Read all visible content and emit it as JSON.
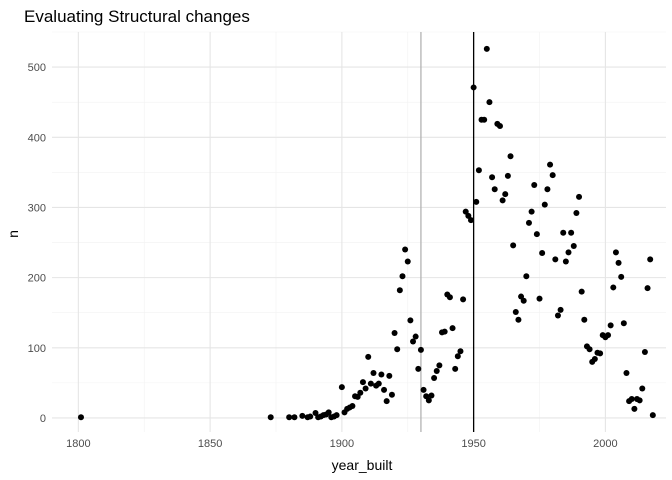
{
  "chart_data": {
    "type": "scatter",
    "title": "Evaluating Structural changes",
    "xlabel": "year_built",
    "ylabel": "n",
    "xlim": [
      1790,
      2023
    ],
    "ylim": [
      -20,
      550
    ],
    "x_ticks": [
      1800,
      1850,
      1900,
      1950,
      2000
    ],
    "y_ticks": [
      0,
      100,
      200,
      300,
      400,
      500
    ],
    "grid": true,
    "colors": {
      "points": "#000000",
      "grid_major": "#e5e5e5",
      "grid_minor": "#f2f2f2",
      "vline_gray": "#b3b3b3",
      "vline_black": "#000000"
    },
    "vlines": [
      {
        "x": 1930,
        "color": "#b3b3b3"
      },
      {
        "x": 1950,
        "color": "#000000"
      }
    ],
    "points": [
      [
        1801,
        1
      ],
      [
        1873,
        1
      ],
      [
        1880,
        1
      ],
      [
        1882,
        1
      ],
      [
        1885,
        3
      ],
      [
        1887,
        1
      ],
      [
        1888,
        2
      ],
      [
        1890,
        7
      ],
      [
        1891,
        1
      ],
      [
        1892,
        2
      ],
      [
        1893,
        4
      ],
      [
        1894,
        5
      ],
      [
        1895,
        8
      ],
      [
        1896,
        1
      ],
      [
        1897,
        2
      ],
      [
        1898,
        4
      ],
      [
        1900,
        44
      ],
      [
        1901,
        8
      ],
      [
        1902,
        13
      ],
      [
        1903,
        15
      ],
      [
        1904,
        17
      ],
      [
        1905,
        31
      ],
      [
        1906,
        30
      ],
      [
        1907,
        36
      ],
      [
        1908,
        51
      ],
      [
        1909,
        42
      ],
      [
        1910,
        87
      ],
      [
        1911,
        49
      ],
      [
        1912,
        64
      ],
      [
        1913,
        46
      ],
      [
        1914,
        49
      ],
      [
        1915,
        62
      ],
      [
        1916,
        40
      ],
      [
        1917,
        24
      ],
      [
        1918,
        60
      ],
      [
        1919,
        33
      ],
      [
        1920,
        121
      ],
      [
        1921,
        98
      ],
      [
        1922,
        182
      ],
      [
        1923,
        202
      ],
      [
        1924,
        240
      ],
      [
        1925,
        223
      ],
      [
        1926,
        139
      ],
      [
        1927,
        109
      ],
      [
        1928,
        116
      ],
      [
        1929,
        70
      ],
      [
        1930,
        97
      ],
      [
        1931,
        40
      ],
      [
        1932,
        31
      ],
      [
        1933,
        25
      ],
      [
        1934,
        32
      ],
      [
        1935,
        57
      ],
      [
        1936,
        67
      ],
      [
        1937,
        75
      ],
      [
        1938,
        122
      ],
      [
        1939,
        123
      ],
      [
        1940,
        176
      ],
      [
        1941,
        172
      ],
      [
        1942,
        128
      ],
      [
        1943,
        70
      ],
      [
        1944,
        88
      ],
      [
        1945,
        95
      ],
      [
        1946,
        169
      ],
      [
        1947,
        294
      ],
      [
        1948,
        288
      ],
      [
        1949,
        282
      ],
      [
        1950,
        471
      ],
      [
        1951,
        308
      ],
      [
        1952,
        353
      ],
      [
        1953,
        425
      ],
      [
        1954,
        425
      ],
      [
        1955,
        526
      ],
      [
        1956,
        450
      ],
      [
        1957,
        343
      ],
      [
        1958,
        326
      ],
      [
        1959,
        419
      ],
      [
        1960,
        416
      ],
      [
        1961,
        310
      ],
      [
        1962,
        319
      ],
      [
        1963,
        345
      ],
      [
        1964,
        373
      ],
      [
        1965,
        246
      ],
      [
        1966,
        151
      ],
      [
        1967,
        140
      ],
      [
        1968,
        173
      ],
      [
        1969,
        167
      ],
      [
        1970,
        202
      ],
      [
        1971,
        278
      ],
      [
        1972,
        294
      ],
      [
        1973,
        332
      ],
      [
        1974,
        262
      ],
      [
        1975,
        170
      ],
      [
        1976,
        235
      ],
      [
        1977,
        304
      ],
      [
        1978,
        326
      ],
      [
        1979,
        361
      ],
      [
        1980,
        346
      ],
      [
        1981,
        226
      ],
      [
        1982,
        146
      ],
      [
        1983,
        154
      ],
      [
        1984,
        264
      ],
      [
        1985,
        223
      ],
      [
        1986,
        236
      ],
      [
        1987,
        264
      ],
      [
        1988,
        245
      ],
      [
        1989,
        292
      ],
      [
        1990,
        315
      ],
      [
        1991,
        180
      ],
      [
        1992,
        140
      ],
      [
        1993,
        102
      ],
      [
        1994,
        98
      ],
      [
        1995,
        80
      ],
      [
        1996,
        84
      ],
      [
        1997,
        93
      ],
      [
        1998,
        92
      ],
      [
        1999,
        118
      ],
      [
        2000,
        115
      ],
      [
        2001,
        118
      ],
      [
        2002,
        132
      ],
      [
        2003,
        186
      ],
      [
        2004,
        236
      ],
      [
        2005,
        221
      ],
      [
        2006,
        201
      ],
      [
        2007,
        135
      ],
      [
        2008,
        64
      ],
      [
        2009,
        24
      ],
      [
        2010,
        27
      ],
      [
        2011,
        13
      ],
      [
        2012,
        27
      ],
      [
        2013,
        25
      ],
      [
        2014,
        42
      ],
      [
        2015,
        94
      ],
      [
        2016,
        185
      ],
      [
        2017,
        226
      ],
      [
        2018,
        4
      ]
    ]
  }
}
